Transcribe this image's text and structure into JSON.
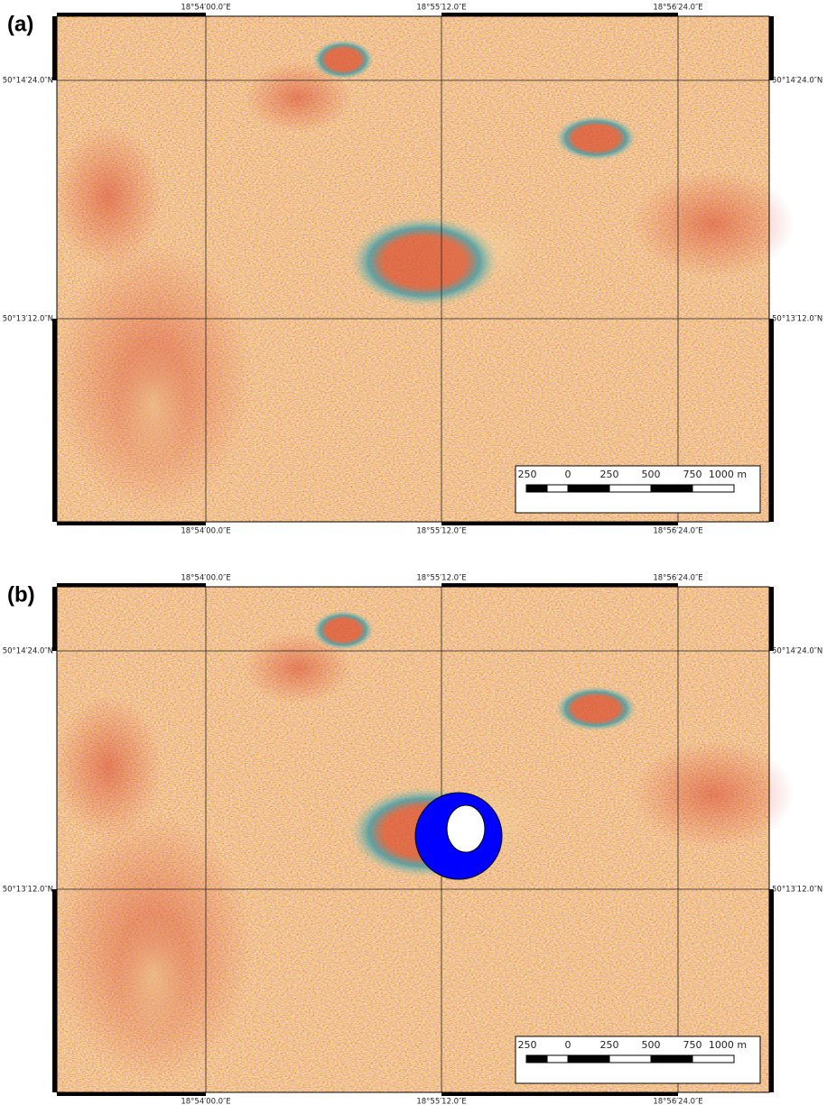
{
  "panels": [
    {
      "label": "(a)",
      "lon_labels": [
        "18°54′00.0″E",
        "18°55′12.0″E",
        "18°56′24.0″E"
      ],
      "lat_labels": [
        "50°14′24.0″N",
        "50°13′12.0″N"
      ],
      "scale_labels": [
        "250",
        "0",
        "250",
        "500",
        "750",
        "1000 m"
      ]
    },
    {
      "label": "(b)",
      "lon_labels": [
        "18°54′00.0″E",
        "18°55′12.0″E",
        "18°56′24.0″E"
      ],
      "lat_labels": [
        "50°14′24.0″N",
        "50°13′12.0″N"
      ],
      "scale_labels": [
        "250",
        "0",
        "250",
        "500",
        "750",
        "1000 m"
      ]
    }
  ]
}
